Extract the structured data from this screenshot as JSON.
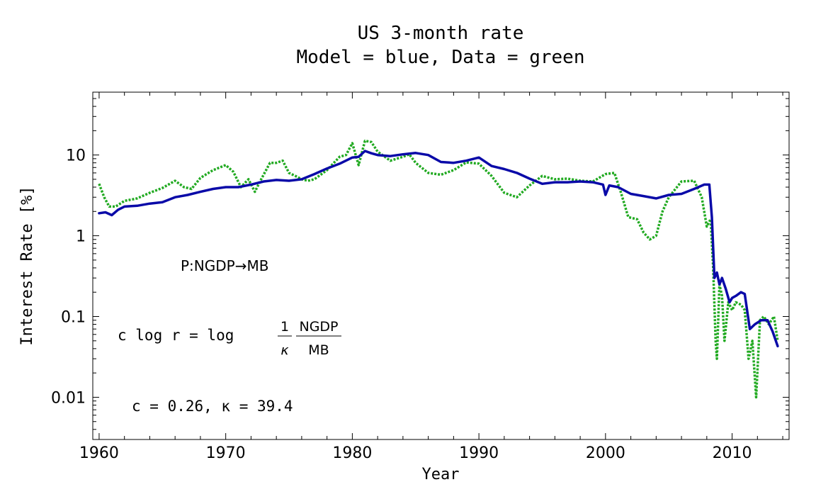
{
  "chart_data": {
    "type": "line",
    "title": "US 3-month rate",
    "subtitle": "Model = blue, Data = green",
    "xlabel": "Year",
    "ylabel": "Interest Rate [%]",
    "xlim": [
      1959.5,
      2014.5
    ],
    "ylim": [
      0.003,
      60
    ],
    "yscale": "log",
    "x_ticks": [
      1960,
      1970,
      1980,
      1990,
      2000,
      2010
    ],
    "x_tick_labels": [
      "1960",
      "1970",
      "1980",
      "1990",
      "2000",
      "2010"
    ],
    "y_ticks": [
      0.01,
      0.1,
      1,
      10
    ],
    "y_tick_labels": [
      "0.01",
      "0.1",
      "1",
      "10"
    ],
    "grid": false,
    "annotations": {
      "mapping": "P:NGDP→MB",
      "eq_lhs": "c log r = log",
      "frac1_num": "1",
      "frac1_den": "κ",
      "frac2_num": "NGDP",
      "frac2_den": "MB",
      "params": "c = 0.26, κ = 39.4"
    },
    "series": [
      {
        "name": "Model",
        "color": "#0a0aa8",
        "style": "solid",
        "x": [
          1960,
          1960.5,
          1961,
          1961.5,
          1962,
          1963,
          1964,
          1965,
          1966,
          1967,
          1968,
          1969,
          1970,
          1971,
          1972,
          1973,
          1974,
          1975,
          1976,
          1977,
          1978,
          1979,
          1980,
          1980.5,
          1981,
          1981.5,
          1982,
          1983,
          1984,
          1985,
          1986,
          1987,
          1988,
          1989,
          1990,
          1991,
          1992,
          1993,
          1994,
          1995,
          1996,
          1997,
          1998,
          1999,
          1999.8,
          2000,
          2000.3,
          2001,
          2002,
          2003,
          2004,
          2005,
          2006,
          2007,
          2007.8,
          2008.2,
          2008.4,
          2008.6,
          2008.8,
          2009,
          2009.2,
          2009.5,
          2009.8,
          2010,
          2010.3,
          2010.7,
          2011,
          2011.4,
          2011.8,
          2012.3,
          2012.8,
          2013.2,
          2013.6
        ],
        "y": [
          1.9,
          1.95,
          1.8,
          2.1,
          2.3,
          2.35,
          2.5,
          2.6,
          3.0,
          3.2,
          3.5,
          3.8,
          4.0,
          4.0,
          4.3,
          4.7,
          4.9,
          4.8,
          5.0,
          5.8,
          6.8,
          7.8,
          9.3,
          9.5,
          11.2,
          10.5,
          10.0,
          9.7,
          10.2,
          10.6,
          10.0,
          8.2,
          8.0,
          8.5,
          9.3,
          7.3,
          6.7,
          6.0,
          5.1,
          4.4,
          4.6,
          4.6,
          4.7,
          4.6,
          4.3,
          3.2,
          4.2,
          4.0,
          3.3,
          3.1,
          2.9,
          3.2,
          3.3,
          3.8,
          4.3,
          4.3,
          1.7,
          0.3,
          0.35,
          0.25,
          0.3,
          0.22,
          0.15,
          0.17,
          0.18,
          0.2,
          0.19,
          0.07,
          0.08,
          0.09,
          0.09,
          0.065,
          0.043
        ]
      },
      {
        "name": "Data",
        "color": "#22aa22",
        "style": "dotted",
        "x": [
          1960,
          1960.4,
          1960.8,
          1961.3,
          1962,
          1963,
          1964,
          1965,
          1966,
          1966.7,
          1967.3,
          1968,
          1969,
          1970,
          1970.6,
          1971.2,
          1971.8,
          1972.3,
          1972.8,
          1973.5,
          1974,
          1974.5,
          1975,
          1975.5,
          1976,
          1976.5,
          1977,
          1978,
          1979,
          1979.5,
          1980,
          1980.5,
          1981,
          1981.5,
          1982,
          1983,
          1984,
          1984.5,
          1985,
          1986,
          1987,
          1988,
          1989,
          1990,
          1991,
          1992,
          1993,
          1994,
          1995,
          1996,
          1997,
          1998,
          1999,
          2000,
          2000.7,
          2001.2,
          2001.8,
          2002.5,
          2003,
          2003.5,
          2004,
          2004.5,
          2005,
          2006,
          2007,
          2007.6,
          2008,
          2008.3,
          2008.5,
          2008.7,
          2008.8,
          2009,
          2009.2,
          2009.4,
          2009.7,
          2010,
          2010.3,
          2010.7,
          2011,
          2011.3,
          2011.6,
          2011.9,
          2012.2,
          2012.5,
          2012.9,
          2013.3,
          2013.6
        ],
        "y": [
          4.4,
          3.0,
          2.3,
          2.3,
          2.7,
          2.9,
          3.4,
          3.9,
          4.8,
          4.0,
          3.8,
          5.2,
          6.5,
          7.5,
          6.2,
          4.0,
          5.0,
          3.5,
          5.0,
          8.0,
          8.0,
          8.5,
          6.0,
          5.5,
          5.0,
          4.8,
          5.0,
          6.5,
          9.5,
          10.0,
          14.0,
          7.5,
          15.0,
          14.5,
          11.0,
          8.5,
          9.5,
          10.2,
          8.0,
          6.0,
          5.7,
          6.5,
          8.1,
          7.8,
          5.5,
          3.4,
          3.0,
          4.2,
          5.5,
          5.0,
          5.1,
          4.8,
          4.7,
          5.8,
          6.0,
          3.5,
          1.7,
          1.6,
          1.1,
          0.9,
          1.0,
          2.0,
          3.0,
          4.7,
          4.8,
          3.0,
          1.3,
          1.6,
          0.4,
          0.05,
          0.03,
          0.25,
          0.18,
          0.05,
          0.15,
          0.12,
          0.15,
          0.14,
          0.12,
          0.03,
          0.05,
          0.01,
          0.09,
          0.1,
          0.08,
          0.1,
          0.05
        ]
      }
    ]
  }
}
